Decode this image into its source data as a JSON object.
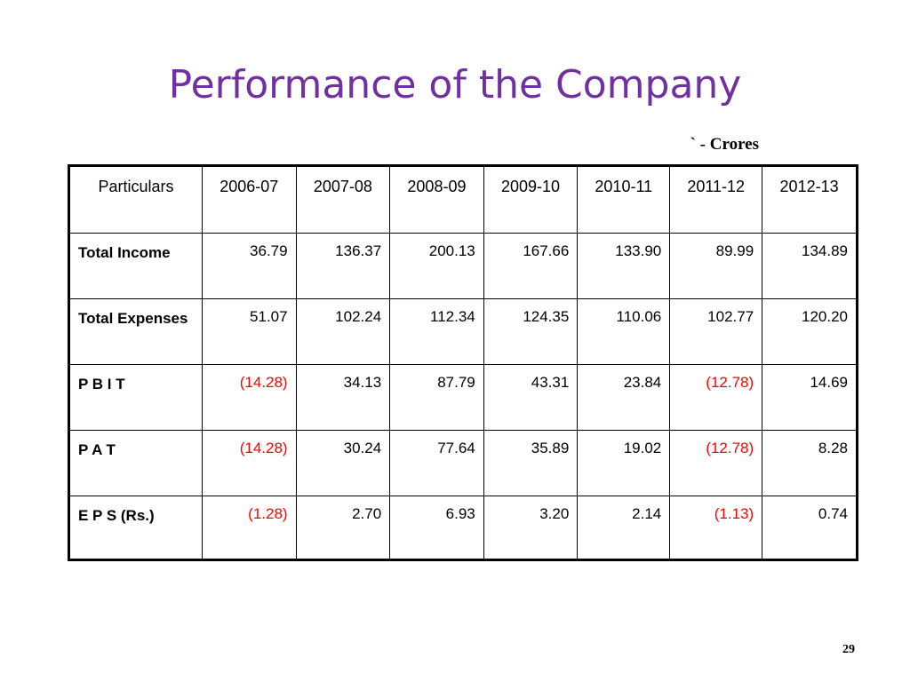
{
  "slide": {
    "title": "Performance of the Company",
    "unit_note": "` - Crores",
    "page_number": "29"
  },
  "table": {
    "headers": [
      "Particulars",
      "2006-07",
      "2007-08",
      "2008-09",
      "2009-10",
      "2010-11",
      "2011-12",
      "2012-13"
    ],
    "rows": [
      {
        "label": "Total Income",
        "values": [
          "36.79",
          "136.37",
          "200.13",
          "167.66",
          "133.90",
          "89.99",
          "134.89"
        ]
      },
      {
        "label": "Total Expenses",
        "values": [
          "51.07",
          "102.24",
          "112.34",
          "124.35",
          "110.06",
          "102.77",
          "120.20"
        ]
      },
      {
        "label": "P B I T",
        "values": [
          "(14.28)",
          "34.13",
          "87.79",
          "43.31",
          "23.84",
          "(12.78)",
          "14.69"
        ]
      },
      {
        "label": "P A T",
        "values": [
          "(14.28)",
          "30.24",
          "77.64",
          "35.89",
          "19.02",
          "(12.78)",
          "8.28"
        ]
      },
      {
        "label": "E P S (Rs.)",
        "values": [
          "(1.28)",
          "2.70",
          "6.93",
          "3.20",
          "2.14",
          "(1.13)",
          "0.74"
        ]
      }
    ]
  },
  "colors": {
    "title": "#7030a0",
    "negative": "#ff0000",
    "text": "#000000"
  }
}
